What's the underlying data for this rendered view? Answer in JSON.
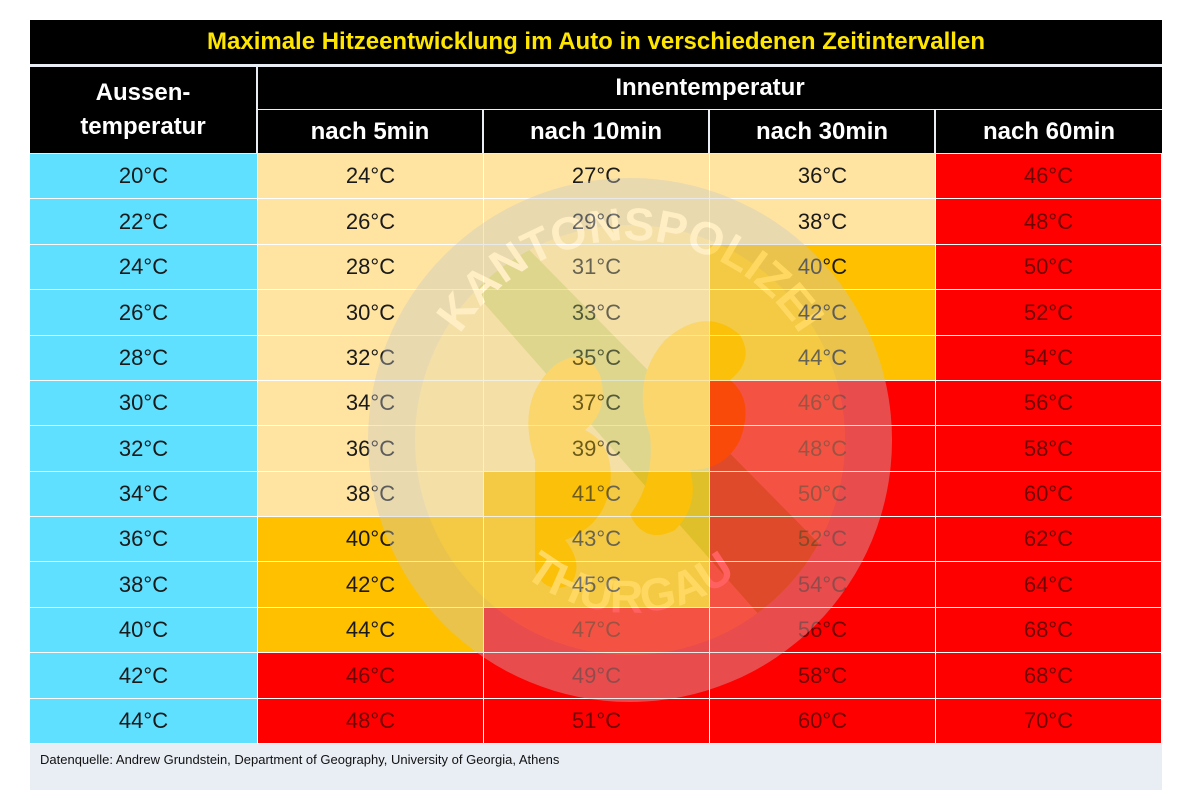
{
  "title": "Maximale Hitzeentwicklung im Auto in verschiedenen Zeitintervallen",
  "header": {
    "outer_line1": "Aussen-",
    "outer_line2": "temperatur",
    "inner": "Innentemperatur",
    "columns": [
      "nach 5min",
      "nach 10min",
      "nach 30min",
      "nach 60min"
    ]
  },
  "watermark": {
    "top_text": "KANTONSPOLIZEI",
    "bottom_text": "THURGAU"
  },
  "source": "Datenquelle: Andrew Grundstein, Department of Geography, University of Georgia, Athens",
  "colors": {
    "outside": "#5fe0ff",
    "light": "#ffe4a1",
    "orange": "#ffc000",
    "red": "#ff0000",
    "title_text": "#ffe600"
  },
  "chart_data": {
    "type": "table",
    "title": "Maximale Hitzeentwicklung im Auto in verschiedenen Zeitintervallen",
    "columns": [
      "Aussentemperatur",
      "nach 5min",
      "nach 10min",
      "nach 30min",
      "nach 60min"
    ],
    "rows": [
      {
        "outside": "20°C",
        "values": [
          "24°C",
          "27°C",
          "36°C",
          "46°C"
        ],
        "levels": [
          "light",
          "light",
          "light",
          "red"
        ]
      },
      {
        "outside": "22°C",
        "values": [
          "26°C",
          "29°C",
          "38°C",
          "48°C"
        ],
        "levels": [
          "light",
          "light",
          "light",
          "red"
        ]
      },
      {
        "outside": "24°C",
        "values": [
          "28°C",
          "31°C",
          "40°C",
          "50°C"
        ],
        "levels": [
          "light",
          "light",
          "orange",
          "red"
        ]
      },
      {
        "outside": "26°C",
        "values": [
          "30°C",
          "33°C",
          "42°C",
          "52°C"
        ],
        "levels": [
          "light",
          "light",
          "orange",
          "red"
        ]
      },
      {
        "outside": "28°C",
        "values": [
          "32°C",
          "35°C",
          "44°C",
          "54°C"
        ],
        "levels": [
          "light",
          "light",
          "orange",
          "red"
        ]
      },
      {
        "outside": "30°C",
        "values": [
          "34°C",
          "37°C",
          "46°C",
          "56°C"
        ],
        "levels": [
          "light",
          "light",
          "red",
          "red"
        ]
      },
      {
        "outside": "32°C",
        "values": [
          "36°C",
          "39°C",
          "48°C",
          "58°C"
        ],
        "levels": [
          "light",
          "light",
          "red",
          "red"
        ]
      },
      {
        "outside": "34°C",
        "values": [
          "38°C",
          "41°C",
          "50°C",
          "60°C"
        ],
        "levels": [
          "light",
          "orange",
          "red",
          "red"
        ]
      },
      {
        "outside": "36°C",
        "values": [
          "40°C",
          "43°C",
          "52°C",
          "62°C"
        ],
        "levels": [
          "orange",
          "orange",
          "red",
          "red"
        ]
      },
      {
        "outside": "38°C",
        "values": [
          "42°C",
          "45°C",
          "54°C",
          "64°C"
        ],
        "levels": [
          "orange",
          "orange",
          "red",
          "red"
        ]
      },
      {
        "outside": "40°C",
        "values": [
          "44°C",
          "47°C",
          "56°C",
          "68°C"
        ],
        "levels": [
          "orange",
          "red",
          "red",
          "red"
        ]
      },
      {
        "outside": "42°C",
        "values": [
          "46°C",
          "49°C",
          "58°C",
          "68°C"
        ],
        "levels": [
          "red",
          "red",
          "red",
          "red"
        ]
      },
      {
        "outside": "44°C",
        "values": [
          "48°C",
          "51°C",
          "60°C",
          "70°C"
        ],
        "levels": [
          "red",
          "red",
          "red",
          "red"
        ]
      }
    ]
  }
}
